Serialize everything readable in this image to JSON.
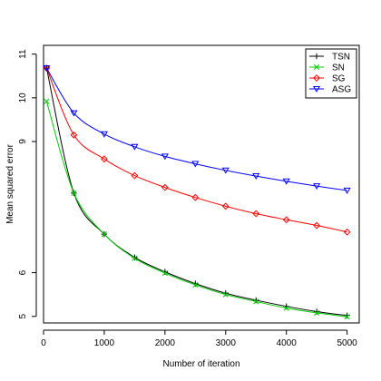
{
  "chart_data": {
    "type": "line",
    "title": "",
    "xlabel": "Number of iteration",
    "ylabel": "Mean squared error",
    "xlim": [
      0,
      5200
    ],
    "ylim": [
      4.85,
      11.2
    ],
    "x_ticks": [
      0,
      1000,
      2000,
      3000,
      4000,
      5000
    ],
    "y_ticks": [
      5,
      6,
      9,
      10,
      11
    ],
    "legend_position": "top-right",
    "grid": false,
    "x": [
      50,
      500,
      1000,
      1500,
      2000,
      2500,
      3000,
      3500,
      4000,
      4500,
      5000
    ],
    "series": [
      {
        "name": "TSN",
        "color": "#000000",
        "marker": "plus",
        "values": [
          10.68,
          7.82,
          6.88,
          6.35,
          6.02,
          5.75,
          5.53,
          5.37,
          5.23,
          5.11,
          5.02
        ]
      },
      {
        "name": "SN",
        "color": "#00cc00",
        "marker": "x",
        "values": [
          9.92,
          7.82,
          6.88,
          6.33,
          5.99,
          5.72,
          5.5,
          5.34,
          5.19,
          5.08,
          4.99
        ]
      },
      {
        "name": "SG",
        "color": "#ff0000",
        "marker": "diamond",
        "values": [
          10.68,
          9.15,
          8.6,
          8.22,
          7.95,
          7.72,
          7.52,
          7.35,
          7.21,
          7.08,
          6.93
        ]
      },
      {
        "name": "ASG",
        "color": "#0000ff",
        "marker": "triangle-down",
        "values": [
          10.68,
          9.65,
          9.17,
          8.88,
          8.66,
          8.49,
          8.34,
          8.21,
          8.09,
          7.98,
          7.88
        ]
      }
    ]
  }
}
